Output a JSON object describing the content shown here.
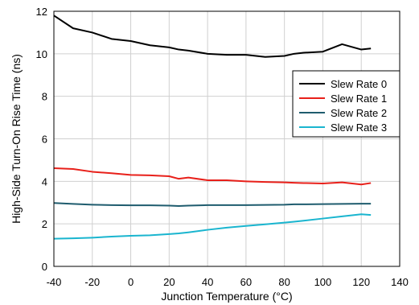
{
  "chart_data": {
    "type": "line",
    "xlabel": "Junction Temperature (°C)",
    "ylabel": "High-Side Turn-On Rise Time (ns)",
    "xlim": [
      -40,
      140
    ],
    "ylim": [
      0,
      12
    ],
    "x_ticks": [
      -40,
      -20,
      0,
      20,
      40,
      60,
      80,
      100,
      120,
      140
    ],
    "y_ticks": [
      0,
      2,
      4,
      6,
      8,
      10,
      12
    ],
    "grid": true,
    "legend_position": "right",
    "series": [
      {
        "name": "Slew Rate 0",
        "color": "#000000",
        "x": [
          -40,
          -30,
          -20,
          -10,
          0,
          10,
          20,
          25,
          30,
          40,
          50,
          60,
          70,
          80,
          85,
          90,
          100,
          110,
          120,
          125
        ],
        "y": [
          11.8,
          11.2,
          11.0,
          10.7,
          10.6,
          10.4,
          10.3,
          10.2,
          10.15,
          10.0,
          9.95,
          9.95,
          9.85,
          9.9,
          10.0,
          10.05,
          10.1,
          10.45,
          10.2,
          10.25
        ]
      },
      {
        "name": "Slew Rate 1",
        "color": "#e8201a",
        "x": [
          -40,
          -30,
          -20,
          -10,
          0,
          10,
          20,
          25,
          30,
          40,
          50,
          60,
          70,
          80,
          85,
          90,
          100,
          110,
          120,
          125
        ],
        "y": [
          4.62,
          4.58,
          4.45,
          4.38,
          4.3,
          4.28,
          4.24,
          4.12,
          4.18,
          4.05,
          4.05,
          4.0,
          3.97,
          3.95,
          3.93,
          3.92,
          3.9,
          3.95,
          3.85,
          3.92
        ]
      },
      {
        "name": "Slew Rate 2",
        "color": "#1f5c6e",
        "x": [
          -40,
          -30,
          -20,
          -10,
          0,
          10,
          20,
          25,
          30,
          40,
          50,
          60,
          70,
          80,
          85,
          90,
          100,
          110,
          120,
          125
        ],
        "y": [
          2.98,
          2.94,
          2.9,
          2.88,
          2.87,
          2.87,
          2.86,
          2.84,
          2.86,
          2.88,
          2.88,
          2.88,
          2.89,
          2.9,
          2.92,
          2.92,
          2.93,
          2.94,
          2.95,
          2.95
        ]
      },
      {
        "name": "Slew Rate 3",
        "color": "#1ab5cf",
        "x": [
          -40,
          -30,
          -20,
          -10,
          0,
          10,
          20,
          25,
          30,
          40,
          50,
          60,
          70,
          80,
          85,
          90,
          100,
          110,
          120,
          125
        ],
        "y": [
          1.3,
          1.32,
          1.35,
          1.4,
          1.44,
          1.46,
          1.52,
          1.55,
          1.6,
          1.72,
          1.82,
          1.9,
          1.98,
          2.06,
          2.1,
          2.15,
          2.25,
          2.35,
          2.45,
          2.42
        ]
      }
    ]
  }
}
